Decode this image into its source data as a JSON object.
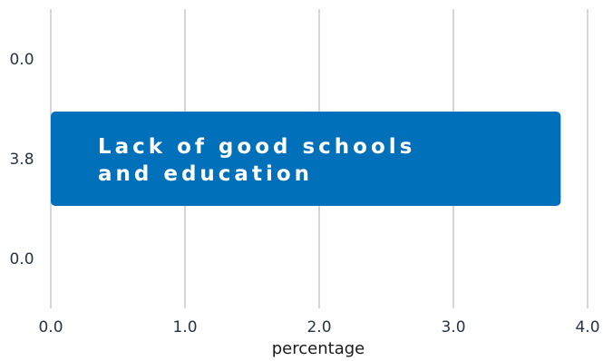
{
  "chart_data": {
    "type": "bar",
    "orientation": "horizontal",
    "categories": [
      "",
      "Lack of good schools and education",
      ""
    ],
    "values": [
      0.0,
      3.8,
      0.0
    ],
    "value_labels": [
      "0.0",
      "3.8",
      "0.0"
    ],
    "bar_label_lines": [
      "Lack of good schools",
      "and education"
    ],
    "xlabel": "percentage",
    "ylabel": "",
    "xlim": [
      0,
      4
    ],
    "xticks": [
      "0.0",
      "1.0",
      "2.0",
      "3.0",
      "4.0"
    ],
    "grid": true,
    "bar_color": "#0070bb"
  }
}
